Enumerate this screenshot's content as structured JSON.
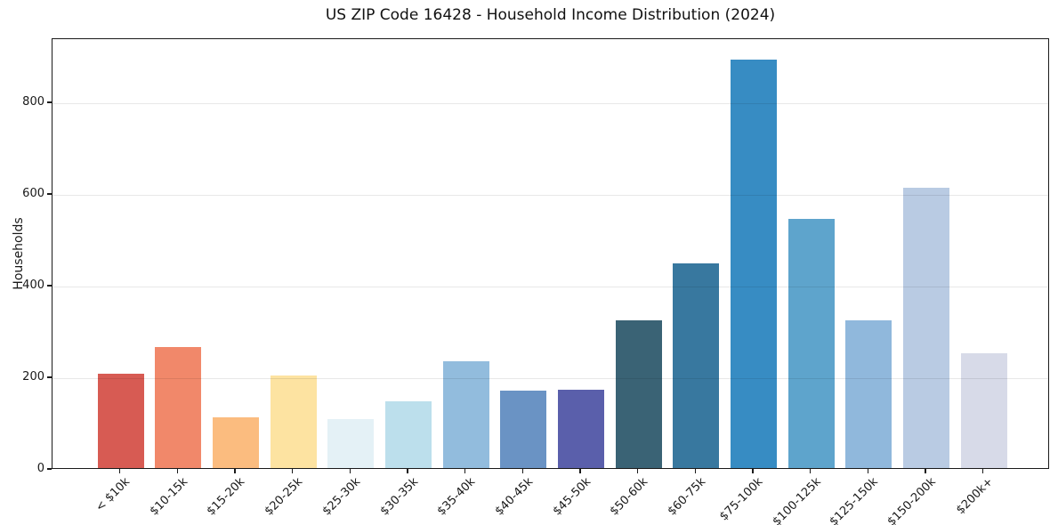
{
  "figure": {
    "title": "US ZIP Code 16428 - Household Income Distribution (2024)"
  },
  "chart_data": {
    "type": "bar",
    "title": "US ZIP Code 16428 - Household Income Distribution (2024)",
    "xlabel": "",
    "ylabel": "Households",
    "categories": [
      "< $10k",
      "$10-15k",
      "$15-20k",
      "$20-25k",
      "$25-30k",
      "$30-35k",
      "$35-40k",
      "$40-45k",
      "$45-50k",
      "$50-60k",
      "$60-75k",
      "$75-100k",
      "$100-125k",
      "$125-150k",
      "$150-200k",
      "$200k+"
    ],
    "values": [
      205,
      265,
      110,
      202,
      106,
      146,
      234,
      169,
      171,
      322,
      447,
      891,
      544,
      323,
      612,
      250
    ],
    "bar_colors": [
      "#d75b53",
      "#f1886a",
      "#fbbc7f",
      "#fde3a1",
      "#e4f1f6",
      "#bcdfec",
      "#92bcdd",
      "#6a93c4",
      "#5a5fab",
      "#3a6375",
      "#38789f",
      "#378cc3",
      "#5ea4cc",
      "#90b8dc",
      "#b9cbe3",
      "#d7dae8"
    ],
    "yticks": [
      0,
      200,
      400,
      600,
      800
    ],
    "ylim": [
      0,
      940
    ],
    "grid": "horizontal",
    "gridline_color": "#e8e8e8",
    "background_color": "#ffffff",
    "xtick_rotation_deg": 45,
    "legend": "none"
  }
}
